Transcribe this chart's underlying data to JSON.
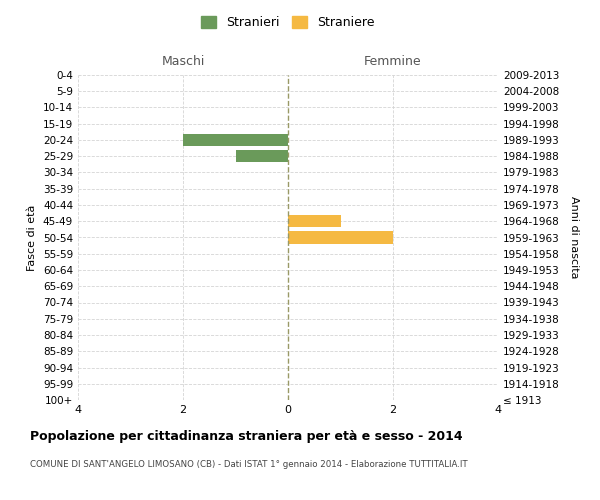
{
  "age_groups": [
    "0-4",
    "5-9",
    "10-14",
    "15-19",
    "20-24",
    "25-29",
    "30-34",
    "35-39",
    "40-44",
    "45-49",
    "50-54",
    "55-59",
    "60-64",
    "65-69",
    "70-74",
    "75-79",
    "80-84",
    "85-89",
    "90-94",
    "95-99",
    "100+"
  ],
  "birth_years": [
    "2009-2013",
    "2004-2008",
    "1999-2003",
    "1994-1998",
    "1989-1993",
    "1984-1988",
    "1979-1983",
    "1974-1978",
    "1969-1973",
    "1964-1968",
    "1959-1963",
    "1954-1958",
    "1949-1953",
    "1944-1948",
    "1939-1943",
    "1934-1938",
    "1929-1933",
    "1924-1928",
    "1919-1923",
    "1914-1918",
    "≤ 1913"
  ],
  "males": [
    0,
    0,
    0,
    0,
    2,
    1,
    0,
    0,
    0,
    0,
    0,
    0,
    0,
    0,
    0,
    0,
    0,
    0,
    0,
    0,
    0
  ],
  "females": [
    0,
    0,
    0,
    0,
    0,
    0,
    0,
    0,
    0,
    1,
    2,
    0,
    0,
    0,
    0,
    0,
    0,
    0,
    0,
    0,
    0
  ],
  "male_color": "#6a9a5a",
  "female_color": "#f5b942",
  "xlim": 4,
  "title": "Popolazione per cittadinanza straniera per età e sesso - 2014",
  "subtitle": "COMUNE DI SANT'ANGELO LIMOSANO (CB) - Dati ISTAT 1° gennaio 2014 - Elaborazione TUTTITALIA.IT",
  "ylabel_left": "Fasce di età",
  "ylabel_right": "Anni di nascita",
  "legend_male": "Stranieri",
  "legend_female": "Straniere",
  "maschi_label": "Maschi",
  "femmine_label": "Femmine",
  "background_color": "#ffffff",
  "grid_color": "#d5d5d5",
  "dashed_color": "#999966"
}
